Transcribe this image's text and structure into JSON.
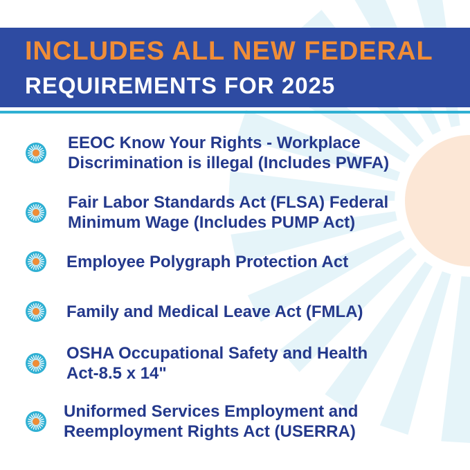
{
  "banner": {
    "line1": "INCLUDES ALL NEW FEDERAL",
    "line2": "REQUIREMENTS FOR 2025"
  },
  "colors": {
    "banner": "#2e4ba2",
    "accent_orange": "#f08d37",
    "accent_cyan": "#2fb0d3",
    "text": "#24398c"
  },
  "bullet_icon": "sunburst-icon",
  "items": [
    {
      "line1": "EEOC Know Your Rights -  Workplace",
      "line2": "Discrimination is illegal (Includes PWFA)"
    },
    {
      "line1": "Fair Labor Standards Act (FLSA) Federal",
      "line2": "Minimum Wage (Includes PUMP Act)"
    },
    {
      "line1": "Employee Polygraph Protection Act",
      "line2": ""
    },
    {
      "line1": "Family and Medical Leave Act (FMLA)",
      "line2": ""
    },
    {
      "line1": "OSHA Occupational Safety and Health",
      "line2": "Act-8.5 x 14\""
    },
    {
      "line1": "Uniformed Services Employment  and",
      "line2": "Reemployment Rights Act (USERRA)"
    }
  ]
}
